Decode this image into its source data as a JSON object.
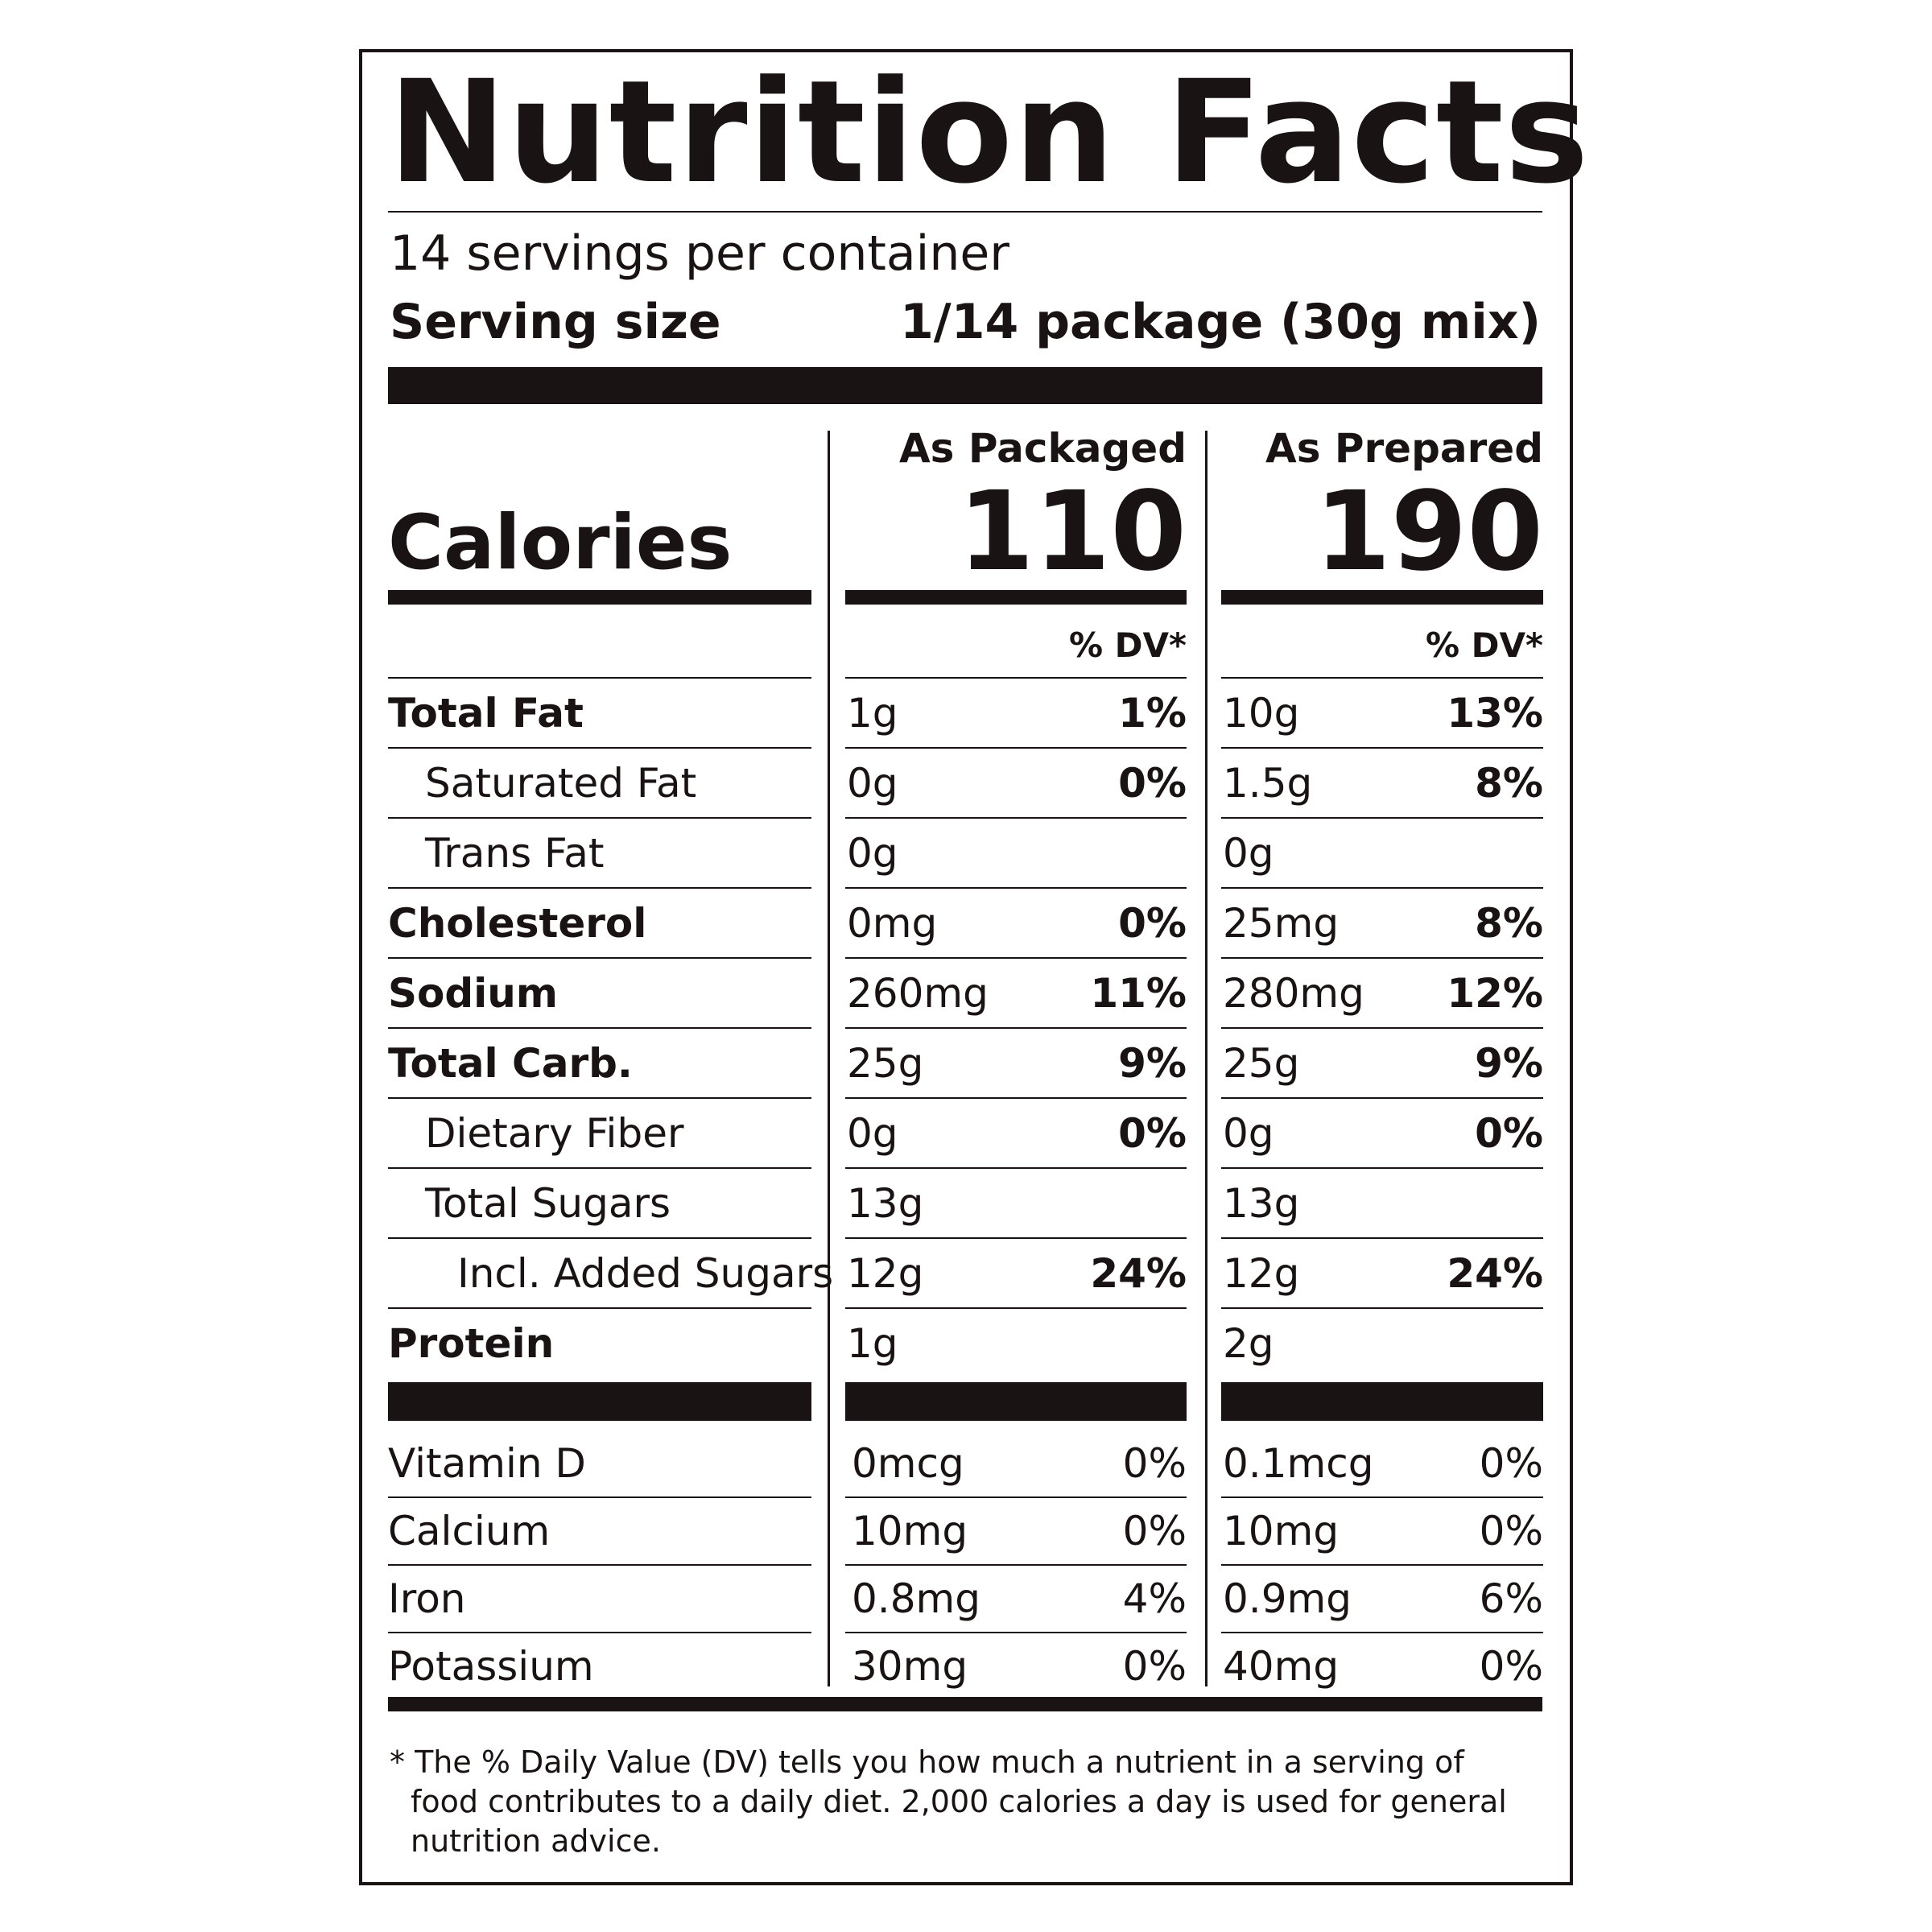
{
  "title": "Nutrition Facts",
  "servings_per_container": "14 servings per container",
  "serving_size_label": "Serving size",
  "serving_size_value": "1/14 package (30g mix)",
  "columns": {
    "packaged_label": "As Packaged",
    "prepared_label": "As Prepared"
  },
  "calories": {
    "label": "Calories",
    "packaged": "110",
    "prepared": "190"
  },
  "dv_header": "% DV*",
  "nutrients": [
    {
      "name": "Total Fat",
      "bold": true,
      "indent": 0,
      "pkg_amount": "1g",
      "pkg_dv": "1%",
      "prep_amount": "10g",
      "prep_dv": "13%"
    },
    {
      "name": "Saturated Fat",
      "bold": false,
      "indent": 1,
      "pkg_amount": "0g",
      "pkg_dv": "0%",
      "prep_amount": "1.5g",
      "prep_dv": "8%"
    },
    {
      "name": "Trans Fat",
      "bold": false,
      "indent": 1,
      "pkg_amount": "0g",
      "pkg_dv": "",
      "prep_amount": "0g",
      "prep_dv": ""
    },
    {
      "name": "Cholesterol",
      "bold": true,
      "indent": 0,
      "pkg_amount": "0mg",
      "pkg_dv": "0%",
      "prep_amount": "25mg",
      "prep_dv": "8%"
    },
    {
      "name": "Sodium",
      "bold": true,
      "indent": 0,
      "pkg_amount": "260mg",
      "pkg_dv": "11%",
      "prep_amount": "280mg",
      "prep_dv": "12%"
    },
    {
      "name": "Total Carb.",
      "bold": true,
      "indent": 0,
      "pkg_amount": "25g",
      "pkg_dv": "9%",
      "prep_amount": "25g",
      "prep_dv": "9%"
    },
    {
      "name": "Dietary Fiber",
      "bold": false,
      "indent": 1,
      "pkg_amount": "0g",
      "pkg_dv": "0%",
      "prep_amount": "0g",
      "prep_dv": "0%"
    },
    {
      "name": "Total Sugars",
      "bold": false,
      "indent": 1,
      "pkg_amount": "13g",
      "pkg_dv": "",
      "prep_amount": "13g",
      "prep_dv": ""
    },
    {
      "name": "Incl. Added Sugars",
      "bold": false,
      "indent": 2,
      "pkg_amount": "12g",
      "pkg_dv": "24%",
      "prep_amount": "12g",
      "prep_dv": "24%"
    },
    {
      "name": "Protein",
      "bold": true,
      "indent": 0,
      "pkg_amount": "1g",
      "pkg_dv": "",
      "prep_amount": "2g",
      "prep_dv": ""
    }
  ],
  "vitamins": [
    {
      "name": "Vitamin D",
      "pkg_amount": "0mcg",
      "pkg_dv": "0%",
      "prep_amount": "0.1mcg",
      "prep_dv": "0%"
    },
    {
      "name": "Calcium",
      "pkg_amount": "10mg",
      "pkg_dv": "0%",
      "prep_amount": "10mg",
      "prep_dv": "0%"
    },
    {
      "name": "Iron",
      "pkg_amount": "0.8mg",
      "pkg_dv": "4%",
      "prep_amount": "0.9mg",
      "prep_dv": "6%"
    },
    {
      "name": "Potassium",
      "pkg_amount": "30mg",
      "pkg_dv": "0%",
      "prep_amount": "40mg",
      "prep_dv": "0%"
    }
  ],
  "footnote_line1": "* The % Daily Value (DV) tells you how much a nutrient in a serving of",
  "footnote_line2": "food contributes to a daily diet. 2,000 calories a day is used for general",
  "footnote_line3": "nutrition advice."
}
